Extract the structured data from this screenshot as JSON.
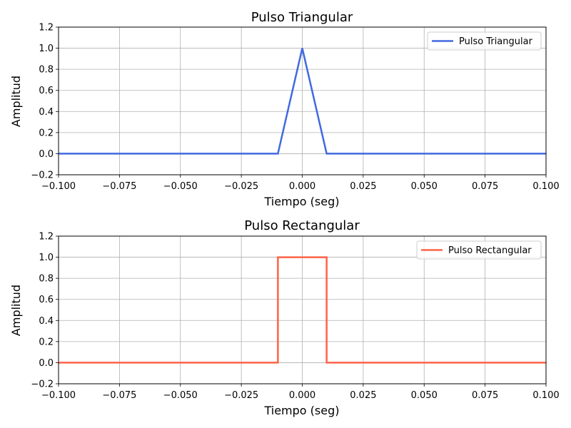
{
  "chart_data": [
    {
      "type": "line",
      "title": "Pulso Triangular",
      "xlabel": "Tiempo (seg)",
      "ylabel": "Amplitud",
      "xlim": [
        -0.1,
        0.1
      ],
      "ylim": [
        -0.2,
        1.2
      ],
      "xticks": [
        "−0.100",
        "−0.075",
        "−0.050",
        "−0.025",
        "0.000",
        "0.025",
        "0.050",
        "0.075",
        "0.100"
      ],
      "yticks": [
        "−0.2",
        "0.0",
        "0.2",
        "0.4",
        "0.6",
        "0.8",
        "1.0",
        "1.2"
      ],
      "grid": true,
      "legend_position": "top-right",
      "series": [
        {
          "name": "Pulso Triangular",
          "color": "#4169e1",
          "x": [
            -0.1,
            -0.01,
            0.0,
            0.01,
            0.1
          ],
          "y": [
            0,
            0,
            1,
            0,
            0
          ]
        }
      ]
    },
    {
      "type": "line",
      "title": "Pulso Rectangular",
      "xlabel": "Tiempo (seg)",
      "ylabel": "Amplitud",
      "xlim": [
        -0.1,
        0.1
      ],
      "ylim": [
        -0.2,
        1.2
      ],
      "xticks": [
        "−0.100",
        "−0.075",
        "−0.050",
        "−0.025",
        "0.000",
        "0.025",
        "0.050",
        "0.075",
        "0.100"
      ],
      "yticks": [
        "−0.2",
        "0.0",
        "0.2",
        "0.4",
        "0.6",
        "0.8",
        "1.0",
        "1.2"
      ],
      "grid": true,
      "legend_position": "top-right",
      "series": [
        {
          "name": "Pulso Rectangular",
          "color": "#ff6347",
          "x": [
            -0.1,
            -0.01,
            -0.01,
            0.01,
            0.01,
            0.1
          ],
          "y": [
            0,
            0,
            1,
            1,
            0,
            0
          ]
        }
      ]
    }
  ]
}
